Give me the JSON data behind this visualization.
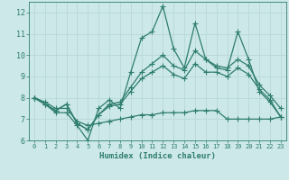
{
  "xlabel": "Humidex (Indice chaleur)",
  "ylabel": "",
  "bg_color": "#cce8e8",
  "grid_color": "#b8d8d8",
  "line_color": "#2e7d6e",
  "xlim": [
    -0.5,
    23.5
  ],
  "ylim": [
    6,
    12.5
  ],
  "yticks": [
    6,
    7,
    8,
    9,
    10,
    11,
    12
  ],
  "xticks": [
    0,
    1,
    2,
    3,
    4,
    5,
    6,
    7,
    8,
    9,
    10,
    11,
    12,
    13,
    14,
    15,
    16,
    17,
    18,
    19,
    20,
    21,
    22,
    23
  ],
  "series": [
    [
      8.0,
      7.7,
      7.3,
      7.3,
      6.7,
      6.0,
      7.5,
      7.9,
      7.5,
      9.2,
      10.8,
      11.1,
      12.3,
      10.3,
      9.4,
      11.5,
      9.8,
      9.4,
      9.3,
      11.1,
      9.8,
      8.3,
      7.8,
      7.1
    ],
    [
      8.0,
      7.7,
      7.4,
      7.7,
      6.8,
      6.5,
      7.2,
      7.7,
      7.8,
      8.5,
      9.2,
      9.6,
      10.0,
      9.5,
      9.3,
      10.2,
      9.8,
      9.5,
      9.4,
      9.8,
      9.5,
      8.6,
      8.1,
      7.5
    ],
    [
      8.0,
      7.7,
      7.4,
      7.7,
      6.8,
      6.5,
      7.2,
      7.6,
      7.7,
      8.3,
      8.9,
      9.2,
      9.5,
      9.1,
      8.9,
      9.6,
      9.2,
      9.2,
      9.0,
      9.4,
      9.1,
      8.4,
      7.9,
      7.1
    ],
    [
      8.0,
      7.8,
      7.5,
      7.5,
      6.9,
      6.7,
      6.8,
      6.9,
      7.0,
      7.1,
      7.2,
      7.2,
      7.3,
      7.3,
      7.3,
      7.4,
      7.4,
      7.4,
      7.0,
      7.0,
      7.0,
      7.0,
      7.0,
      7.1
    ]
  ],
  "marker": "+",
  "markersize": 4,
  "linewidth": 0.9
}
